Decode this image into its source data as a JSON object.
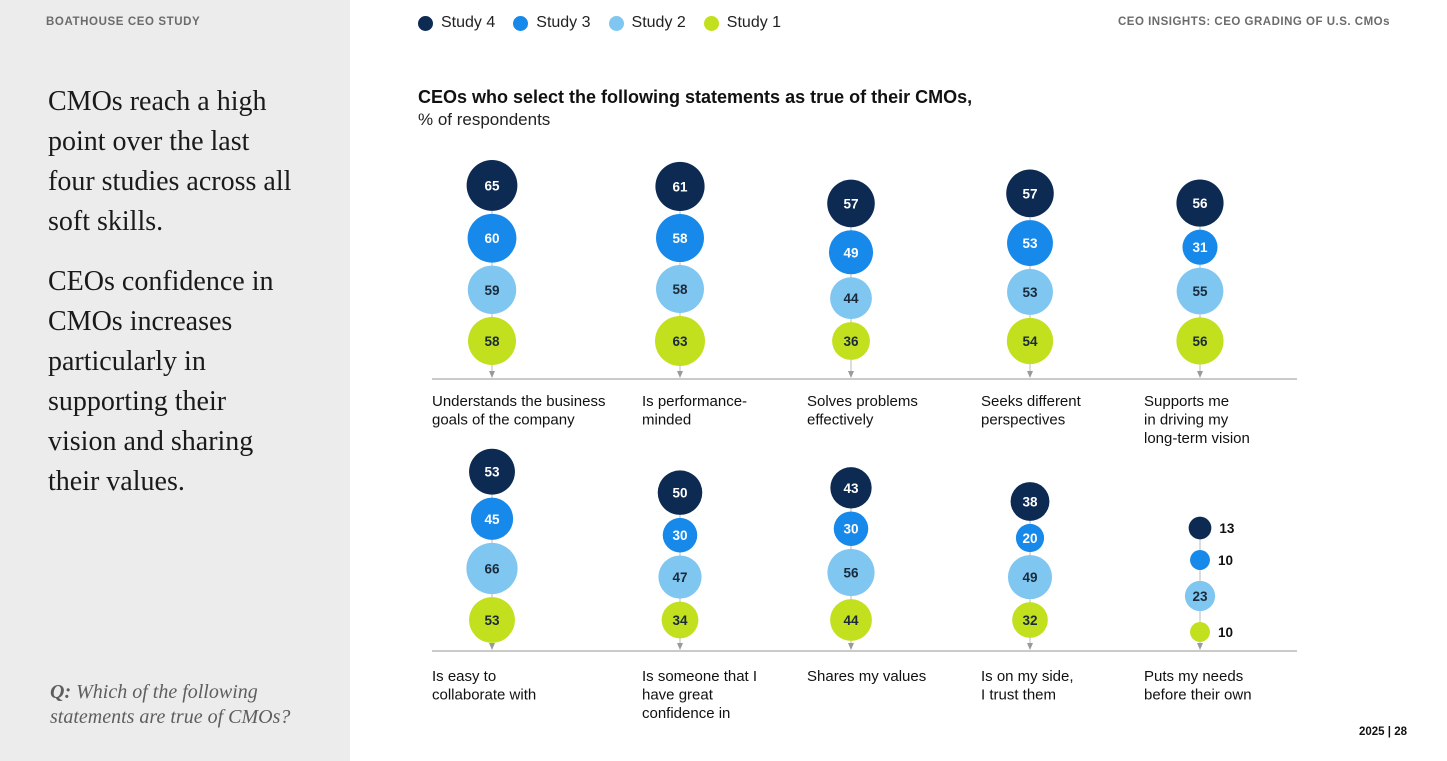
{
  "sidebar": {
    "brand": "BOATHOUSE CEO STUDY",
    "insight_1": "CMOs reach a high point over the last four studies across all soft skills.",
    "insight_2": "CEOs confidence in CMOs increases particularly in supporting their vision and sharing their values.",
    "question_prefix": "Q:",
    "question_text": "Which of the following statements are true of CMOs?"
  },
  "header": {
    "right_title": "CEO INSIGHTS: CEO GRADING OF U.S. CMOs"
  },
  "footer": {
    "year": "2025",
    "separator": "|",
    "page": "28"
  },
  "colors": {
    "study4": "#0d2a52",
    "study3": "#1689ea",
    "study2": "#7fc6f1",
    "study1": "#c3e01e",
    "axis": "#b9b9b9",
    "sidebar_bg": "#ececec"
  },
  "chart_data": {
    "type": "bubble-dot",
    "title": "CEOs who select the following statements as true of their CMOs,",
    "subtitle": "% of respondents",
    "legend_placement": "top",
    "series": [
      {
        "name": "Study 4",
        "color": "#0d2a52"
      },
      {
        "name": "Study 3",
        "color": "#1689ea"
      },
      {
        "name": "Study 2",
        "color": "#7fc6f1"
      },
      {
        "name": "Study 1",
        "color": "#c3e01e"
      }
    ],
    "categories": [
      {
        "label": [
          "Understands the business",
          "goals of the company"
        ],
        "values": [
          65,
          60,
          59,
          58
        ]
      },
      {
        "label": [
          "Is performance-",
          "minded"
        ],
        "values": [
          61,
          58,
          58,
          63
        ]
      },
      {
        "label": [
          "Solves problems",
          "effectively"
        ],
        "values": [
          57,
          49,
          44,
          36
        ]
      },
      {
        "label": [
          "Seeks different",
          "perspectives"
        ],
        "values": [
          57,
          53,
          53,
          54
        ]
      },
      {
        "label": [
          "Supports me",
          "in driving my",
          "long-term vision"
        ],
        "values": [
          56,
          31,
          55,
          56
        ]
      },
      {
        "label": [
          "Is easy to",
          "collaborate with"
        ],
        "values": [
          53,
          45,
          66,
          53
        ]
      },
      {
        "label": [
          "Is someone that I",
          "have great",
          "confidence in"
        ],
        "values": [
          50,
          30,
          47,
          34
        ]
      },
      {
        "label": [
          "Shares my values"
        ],
        "values": [
          43,
          30,
          56,
          44
        ]
      },
      {
        "label": [
          "Is on my side,",
          "I trust them"
        ],
        "values": [
          38,
          20,
          49,
          32
        ]
      },
      {
        "label": [
          "Puts my needs",
          "before their own"
        ],
        "values": [
          13,
          10,
          23,
          10
        ]
      }
    ]
  }
}
